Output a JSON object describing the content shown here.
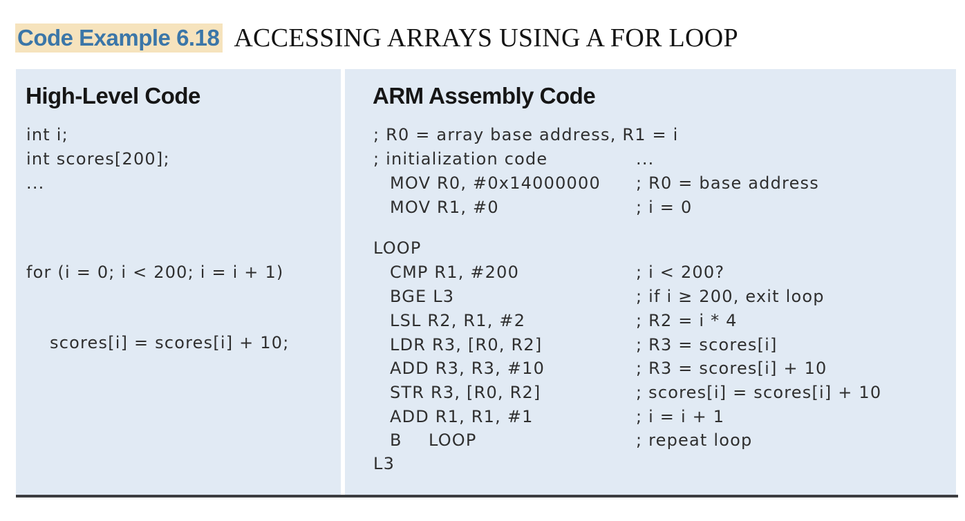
{
  "title": {
    "label": "Code Example 6.18",
    "text": "ACCESSING ARRAYS USING A FOR LOOP"
  },
  "left_panel": {
    "heading": "High-Level Code",
    "lines": [
      "int i;",
      "int scores[200];",
      "...",
      "for (i = 0; i < 200; i = i + 1)",
      "scores[i] = scores[i] + 10;"
    ]
  },
  "right_panel": {
    "heading": "ARM Assembly Code",
    "instructions": [
      "; R0 = array base address, R1 = i",
      "; initialization code",
      "MOV R0, #0x14000000",
      "MOV R1, #0",
      "LOOP",
      "CMP R1, #200",
      "BGE L3",
      "LSL R2, R1, #2",
      "LDR R3, [R0, R2]",
      "ADD R3, R3, #10",
      "STR R3, [R0, R2]",
      "ADD R1, R1, #1",
      "B",
      "LOOP",
      "L3"
    ],
    "comments": [
      "...",
      "; R0 = base address",
      "; i = 0",
      "; i < 200?",
      "; if i ≥ 200, exit loop",
      "; R2 = i * 4",
      "; R3 = scores[i]",
      "; R3 = scores[i] + 10",
      "; scores[i] = scores[i] + 10",
      "; i = i + 1",
      "; repeat loop"
    ]
  }
}
